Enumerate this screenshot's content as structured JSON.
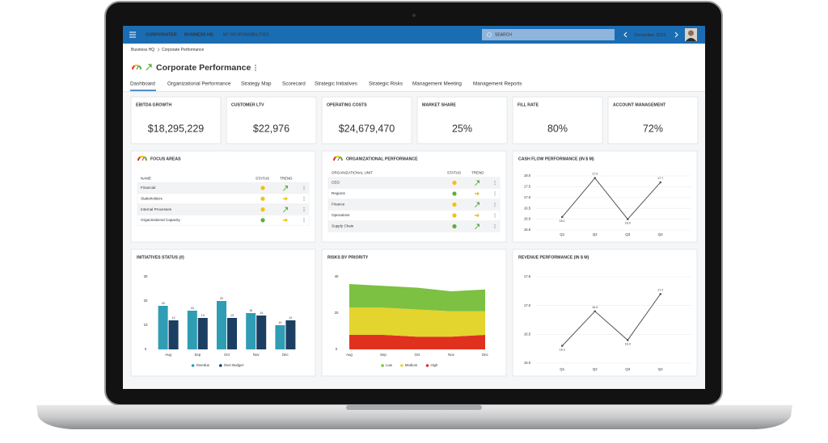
{
  "nav": {
    "brand": "CORPORATER",
    "links": [
      "BUSINESS HQ",
      "MY RESPONSIBILITIES"
    ],
    "search": "SEARCH",
    "period": "December 2021"
  },
  "breadcrumb": [
    "Business HQ",
    "Corporate Performance"
  ],
  "title": "Corporate Performance",
  "tabs": [
    "Dashboard",
    "Organizational Performance",
    "Strategy Map",
    "Scorecard",
    "Strategic Initiatives",
    "Strategic Risks",
    "Management Meeting",
    "Management Reports"
  ],
  "kpis": [
    {
      "label": "EBITDA GROWTH",
      "value": "$18,295,229"
    },
    {
      "label": "CUSTOMER LTV",
      "value": "$22,976"
    },
    {
      "label": "OPERATING COSTS",
      "value": "$24,679,470"
    },
    {
      "label": "MARKET SHARE",
      "value": "25%"
    },
    {
      "label": "FILL RATE",
      "value": "80%"
    },
    {
      "label": "ACCOUNT MANAGEMENT",
      "value": "72%"
    }
  ],
  "focus_areas": {
    "title": "FOCUS AREAS",
    "columns": [
      "NAME",
      "STATUS",
      "TREND"
    ],
    "rows": [
      {
        "name": "Financial",
        "status": "#f2c20f",
        "trend": "up"
      },
      {
        "name": "Stakeholders",
        "status": "#f2c20f",
        "trend": "right"
      },
      {
        "name": "Internal Processes",
        "status": "#f2c20f",
        "trend": "up"
      },
      {
        "name": "Organizational Capacity",
        "status": "#5cae3b",
        "trend": "right"
      }
    ]
  },
  "org_performance": {
    "title": "ORGANIZATIONAL PERFORMANCE",
    "columns": [
      "ORGANIZATIONAL UNIT",
      "STATUS",
      "TREND"
    ],
    "rows": [
      {
        "name": "CEO",
        "status": "#f2c20f",
        "trend": "up"
      },
      {
        "name": "Regions",
        "status": "#5cae3b",
        "trend": "right"
      },
      {
        "name": "Finance",
        "status": "#f2c20f",
        "trend": "up"
      },
      {
        "name": "Operations",
        "status": "#f2c20f",
        "trend": "right"
      },
      {
        "name": "Supply Chain",
        "status": "#5cae3b",
        "trend": "up"
      }
    ]
  },
  "chart_data": [
    {
      "type": "line",
      "title": "CASH FLOW PERFORMANCE (IN $ M)",
      "categories": [
        "Q1",
        "Q2",
        "Q3",
        "Q4"
      ],
      "values": [
        16.1,
        17.9,
        16.0,
        17.7
      ],
      "value_labels": [
        "16.1",
        "17.9",
        "16.0",
        "17.7"
      ],
      "color": "#555555",
      "ylim": [
        15.5,
        18.0
      ],
      "yticks": [
        15.5,
        {
          "value": 16,
          "label": "16.0"
        },
        16.5,
        {
          "value": 17,
          "label": "17.0"
        },
        17.5,
        {
          "value": 18,
          "label": "18.0"
        }
      ],
      "grid": true
    },
    {
      "type": "bar",
      "title": "INITIATIVES STATUS (#)",
      "categories": [
        "Aug",
        "Sep",
        "Oct",
        "Nov",
        "Dec"
      ],
      "series": [
        {
          "name": "Overdue",
          "color": "#2f9db4",
          "values": [
            18,
            16,
            20,
            15,
            10
          ]
        },
        {
          "name": "Over Budget",
          "color": "#1b3f62",
          "values": [
            12,
            13,
            13,
            14,
            12
          ]
        }
      ],
      "ylim": [
        0,
        30
      ],
      "yticks": [
        0,
        10,
        20,
        30
      ],
      "grid": false
    },
    {
      "type": "area",
      "title": "RISKS BY PRIORITY",
      "categories": [
        "Aug",
        "Sep",
        "Oct",
        "Nov",
        "Dec"
      ],
      "series": [
        {
          "name": "Low",
          "color": "#7cc142",
          "values": [
            13,
            12,
            12,
            11,
            12
          ]
        },
        {
          "name": "Medium",
          "color": "#e3d42e",
          "values": [
            15,
            15,
            15,
            14,
            13
          ]
        },
        {
          "name": "High",
          "color": "#e0311f",
          "values": [
            8,
            8,
            7,
            7,
            8
          ]
        }
      ],
      "ylim": [
        0,
        40
      ],
      "yticks": [
        0,
        20,
        40
      ],
      "grid": false
    },
    {
      "type": "line",
      "title": "REVENUE PERFORMANCE (IN $ M)",
      "categories": [
        "Q1",
        "Q2",
        "Q3",
        "Q4"
      ],
      "values": [
        16.3,
        16.9,
        16.4,
        17.2
      ],
      "value_labels": [
        "16.3",
        "16.9",
        "16.4",
        "17.2"
      ],
      "color": "#555555",
      "ylim": [
        16.0,
        17.5
      ],
      "yticks": [
        {
          "value": 16,
          "label": "16.0"
        },
        16.5,
        {
          "value": 17,
          "label": "17.0"
        },
        17.5
      ],
      "grid": true
    }
  ]
}
